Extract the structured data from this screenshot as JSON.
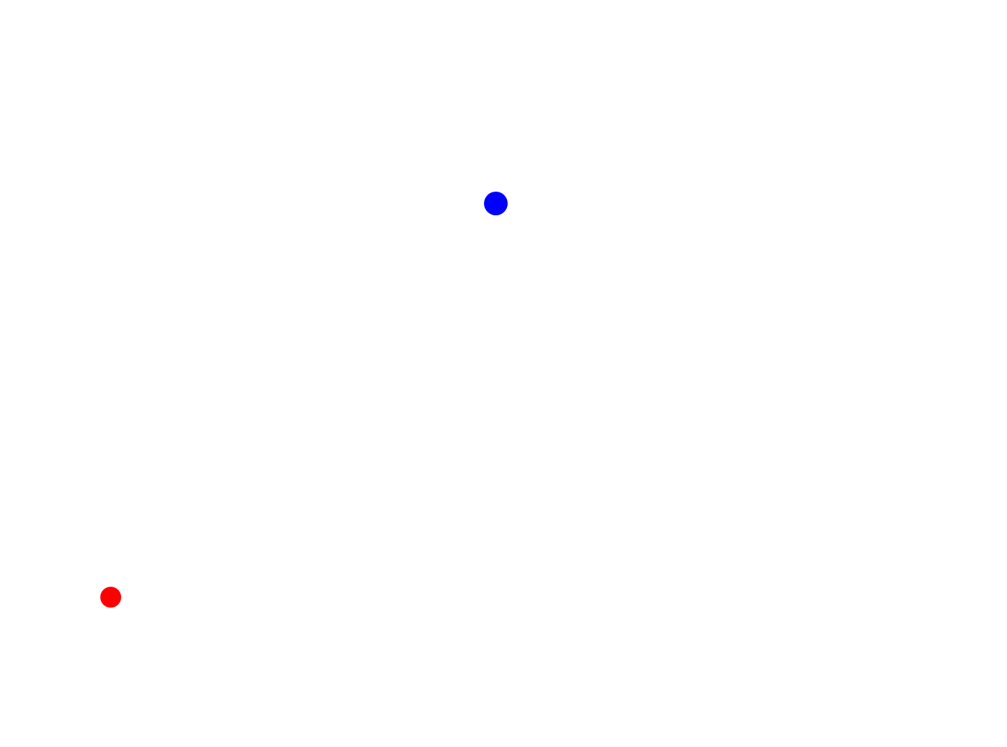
{
  "canvas": {
    "background": "#ffffff"
  },
  "markers": [
    {
      "name": "blue-dot",
      "color": "#0000ff"
    },
    {
      "name": "red-dot",
      "color": "#ff0000"
    }
  ]
}
